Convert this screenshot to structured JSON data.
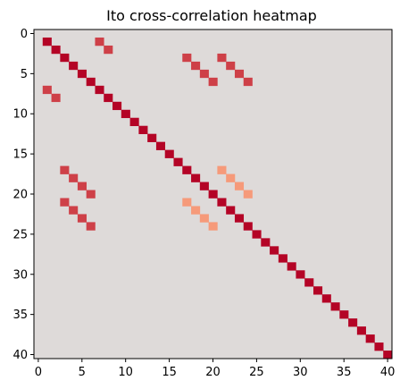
{
  "chart_data": {
    "type": "heatmap",
    "title": "Ito cross-correlation heatmap",
    "xlabel": "",
    "ylabel": "",
    "n": 41,
    "xlim": [
      -0.5,
      40.5
    ],
    "ylim": [
      40.5,
      -0.5
    ],
    "x_ticks": [
      0,
      5,
      10,
      15,
      20,
      25,
      30,
      35,
      40
    ],
    "y_ticks": [
      0,
      5,
      10,
      15,
      20,
      25,
      30,
      35,
      40
    ],
    "colormap": "coolwarm",
    "vmin": -1,
    "vmax": 1,
    "background_value": 0.02,
    "diagonal": {
      "from": 1,
      "to": 40,
      "value": 1.0
    },
    "cells": [
      {
        "row": 1,
        "col": 7,
        "value": 0.8
      },
      {
        "row": 7,
        "col": 1,
        "value": 0.8
      },
      {
        "row": 2,
        "col": 8,
        "value": 0.8
      },
      {
        "row": 8,
        "col": 2,
        "value": 0.8
      },
      {
        "row": 3,
        "col": 17,
        "value": 0.8
      },
      {
        "row": 17,
        "col": 3,
        "value": 0.8
      },
      {
        "row": 4,
        "col": 18,
        "value": 0.8
      },
      {
        "row": 18,
        "col": 4,
        "value": 0.8
      },
      {
        "row": 5,
        "col": 19,
        "value": 0.8
      },
      {
        "row": 19,
        "col": 5,
        "value": 0.8
      },
      {
        "row": 6,
        "col": 20,
        "value": 0.8
      },
      {
        "row": 20,
        "col": 6,
        "value": 0.8
      },
      {
        "row": 3,
        "col": 21,
        "value": 0.8
      },
      {
        "row": 21,
        "col": 3,
        "value": 0.8
      },
      {
        "row": 4,
        "col": 22,
        "value": 0.8
      },
      {
        "row": 22,
        "col": 4,
        "value": 0.8
      },
      {
        "row": 5,
        "col": 23,
        "value": 0.8
      },
      {
        "row": 23,
        "col": 5,
        "value": 0.8
      },
      {
        "row": 6,
        "col": 24,
        "value": 0.8
      },
      {
        "row": 24,
        "col": 6,
        "value": 0.8
      },
      {
        "row": 17,
        "col": 21,
        "value": 0.5
      },
      {
        "row": 21,
        "col": 17,
        "value": 0.5
      },
      {
        "row": 18,
        "col": 22,
        "value": 0.5
      },
      {
        "row": 22,
        "col": 18,
        "value": 0.5
      },
      {
        "row": 19,
        "col": 23,
        "value": 0.5
      },
      {
        "row": 23,
        "col": 19,
        "value": 0.5
      },
      {
        "row": 20,
        "col": 24,
        "value": 0.5
      },
      {
        "row": 24,
        "col": 20,
        "value": 0.5
      }
    ]
  }
}
